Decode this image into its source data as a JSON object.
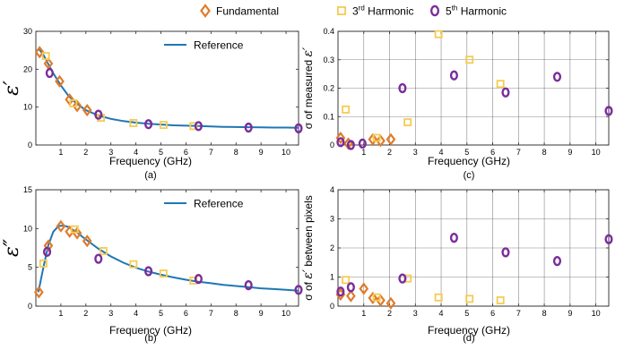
{
  "legend": {
    "entries": [
      {
        "label": "Fundamental",
        "marker": "diamond",
        "color": "#E07B2A"
      },
      {
        "label": "3",
        "sup": "rd",
        "rest": " Harmonic",
        "marker": "square",
        "color": "#F5CC52"
      },
      {
        "label": "5",
        "sup": "th",
        "rest": "  Harmonic",
        "marker": "circle",
        "color": "#7B2D9B"
      }
    ]
  },
  "chart_data": [
    {
      "panel": "(a)",
      "type": "line",
      "xlabel": "Frequency (GHz)",
      "ylabel_symbol": "ε′",
      "xlim": [
        0,
        10.5
      ],
      "ylim": [
        0,
        30
      ],
      "xticks": [
        "1",
        "2",
        "3",
        "4",
        "5",
        "6",
        "7",
        "8",
        "9",
        "10"
      ],
      "yticks": [
        "0",
        "10",
        "20",
        "30"
      ],
      "grid": false,
      "legend": {
        "label": "Reference",
        "placement": "top-center"
      },
      "reference_color": "#1F77B4",
      "reference": {
        "x": [
          0.1,
          0.3,
          0.5,
          0.7,
          1.0,
          1.3,
          1.6,
          2.0,
          2.5,
          3.0,
          3.5,
          4.0,
          4.5,
          5.0,
          5.5,
          6.0,
          6.5,
          7.0,
          7.5,
          8.0,
          8.5,
          9.0,
          9.5,
          10.0,
          10.5
        ],
        "y": [
          25.5,
          23.8,
          21.3,
          18.9,
          15.7,
          13.0,
          11.1,
          9.2,
          7.8,
          6.9,
          6.3,
          5.9,
          5.6,
          5.4,
          5.2,
          5.1,
          5.0,
          4.9,
          4.8,
          4.75,
          4.7,
          4.65,
          4.6,
          4.6,
          4.55
        ]
      },
      "series": [
        {
          "name": "Fundamental",
          "marker": "diamond",
          "x": [
            0.15,
            0.5,
            0.95,
            1.35,
            1.65,
            2.05
          ],
          "y": [
            24.5,
            21.5,
            16.8,
            12.0,
            10.3,
            9.2
          ]
        },
        {
          "name": "3rd Harmonic",
          "marker": "square",
          "x": [
            0.4,
            1.5,
            2.6,
            3.9,
            5.1,
            6.3
          ],
          "y": [
            23.5,
            11.0,
            7.2,
            5.8,
            5.3,
            5.0
          ]
        },
        {
          "name": "5th Harmonic",
          "marker": "circle",
          "x": [
            0.55,
            2.5,
            4.5,
            6.5,
            8.5,
            10.5
          ],
          "y": [
            19.0,
            8.0,
            5.5,
            5.0,
            4.6,
            4.4
          ]
        }
      ],
      "subcaption": "(a)"
    },
    {
      "panel": "(b)",
      "type": "line",
      "xlabel": "Frequency (GHz)",
      "ylabel_symbol": "ε″",
      "xlim": [
        0,
        10.5
      ],
      "ylim": [
        0,
        15
      ],
      "xticks": [
        "1",
        "2",
        "3",
        "4",
        "5",
        "6",
        "7",
        "8",
        "9",
        "10"
      ],
      "yticks": [
        "0",
        "5",
        "10",
        "15"
      ],
      "grid": false,
      "legend": {
        "label": "Reference",
        "placement": "top-center"
      },
      "reference_color": "#1F77B4",
      "reference": {
        "x": [
          0.1,
          0.3,
          0.5,
          0.7,
          0.9,
          1.1,
          1.3,
          1.6,
          2.0,
          2.5,
          3.0,
          3.5,
          4.0,
          4.5,
          5.0,
          5.5,
          6.0,
          6.5,
          7.0,
          7.5,
          8.0,
          8.5,
          9.0,
          9.5,
          10.0,
          10.5
        ],
        "y": [
          1.8,
          5.0,
          7.9,
          9.6,
          10.3,
          10.4,
          10.2,
          9.6,
          8.6,
          7.4,
          6.4,
          5.6,
          4.95,
          4.45,
          4.05,
          3.7,
          3.4,
          3.15,
          2.95,
          2.75,
          2.6,
          2.45,
          2.3,
          2.2,
          2.1,
          2.0
        ]
      },
      "series": [
        {
          "name": "Fundamental",
          "marker": "diamond",
          "x": [
            0.12,
            0.5,
            1.0,
            1.35,
            1.65,
            2.05
          ],
          "y": [
            1.8,
            7.8,
            10.3,
            9.6,
            9.4,
            8.4
          ]
        },
        {
          "name": "3rd Harmonic",
          "marker": "square",
          "x": [
            0.3,
            1.55,
            2.7,
            3.9,
            5.1,
            6.3
          ],
          "y": [
            5.5,
            9.9,
            7.1,
            5.4,
            4.2,
            3.3
          ]
        },
        {
          "name": "5th Harmonic",
          "marker": "circle",
          "x": [
            0.45,
            2.5,
            4.5,
            6.5,
            8.5,
            10.5
          ],
          "y": [
            7.0,
            6.1,
            4.5,
            3.5,
            2.7,
            2.1
          ]
        }
      ],
      "subcaption": "(b)"
    },
    {
      "panel": "(c)",
      "type": "scatter",
      "xlabel": "Frequency (GHz)",
      "ylabel_prefix": "σ of measured ",
      "ylabel_symbol": "ε′",
      "xlim": [
        0,
        10.5
      ],
      "ylim": [
        0,
        0.4
      ],
      "xticks": [
        "1",
        "2",
        "3",
        "4",
        "5",
        "6",
        "7",
        "8",
        "9",
        "10"
      ],
      "yticks": [
        "0",
        "0.1",
        "0.2",
        "0.3",
        "0.4"
      ],
      "grid": true,
      "series": [
        {
          "name": "Fundamental",
          "marker": "diamond",
          "x": [
            0.1,
            0.4,
            1.35,
            1.65,
            2.05
          ],
          "y": [
            0.025,
            0.005,
            0.02,
            0.015,
            0.02
          ]
        },
        {
          "name": "3rd Harmonic",
          "marker": "square",
          "x": [
            0.3,
            1.5,
            2.7,
            3.9,
            5.1,
            6.3
          ],
          "y": [
            0.125,
            0.025,
            0.08,
            0.39,
            0.3,
            0.215
          ]
        },
        {
          "name": "5th Harmonic",
          "marker": "circle",
          "x": [
            0.1,
            0.5,
            0.95,
            2.5,
            4.5,
            6.5,
            8.5,
            10.5
          ],
          "y": [
            0.01,
            0.0,
            0.005,
            0.2,
            0.245,
            0.185,
            0.24,
            0.12
          ]
        }
      ],
      "subcaption": "(c)"
    },
    {
      "panel": "(d)",
      "type": "scatter",
      "xlabel": "Frequency (GHz)",
      "ylabel_prefix": "σ of ",
      "ylabel_symbol": "ε′",
      "ylabel_suffix": " between pixels",
      "xlim": [
        0,
        10.5
      ],
      "ylim": [
        0,
        4
      ],
      "xticks": [
        "1",
        "2",
        "3",
        "4",
        "5",
        "6",
        "7",
        "8",
        "9",
        "10"
      ],
      "yticks": [
        "0",
        "1",
        "2",
        "3",
        "4"
      ],
      "grid": true,
      "series": [
        {
          "name": "Fundamental",
          "marker": "diamond",
          "x": [
            0.1,
            0.5,
            1.0,
            1.35,
            1.65,
            2.05
          ],
          "y": [
            0.4,
            0.35,
            0.6,
            0.28,
            0.2,
            0.1
          ]
        },
        {
          "name": "3rd Harmonic",
          "marker": "square",
          "x": [
            0.3,
            1.5,
            2.7,
            3.9,
            5.1,
            6.3
          ],
          "y": [
            0.9,
            0.3,
            0.95,
            0.3,
            0.25,
            0.2
          ]
        },
        {
          "name": "5th Harmonic",
          "marker": "circle",
          "x": [
            0.1,
            0.5,
            2.5,
            4.5,
            6.5,
            8.5,
            10.5
          ],
          "y": [
            0.5,
            0.65,
            0.95,
            2.35,
            1.85,
            1.55,
            2.3
          ]
        }
      ],
      "subcaption": "(d)"
    }
  ]
}
